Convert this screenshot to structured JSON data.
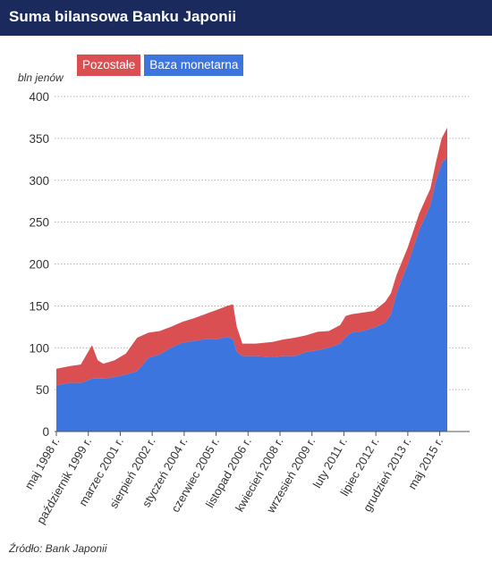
{
  "header": {
    "title": "Suma bilansowa Banku Japonii"
  },
  "legend": {
    "items": [
      {
        "label": "Pozostałe",
        "color": "#d94f52"
      },
      {
        "label": "Baza monetarna",
        "color": "#3c75dd"
      }
    ]
  },
  "source": "Źródło: Bank Japonii",
  "chart_data": {
    "type": "area",
    "stacked": true,
    "ylabel": "bln jenów",
    "ylim": [
      0,
      400
    ],
    "yticks": [
      0,
      50,
      100,
      150,
      200,
      250,
      300,
      350,
      400
    ],
    "grid": true,
    "legend_position": "top-left",
    "xlim": [
      "1998-05",
      "2015-09"
    ],
    "xticks": [
      {
        "date": "1998-05",
        "label": "maj 1998 r."
      },
      {
        "date": "1999-10",
        "label": "październik 1999 r."
      },
      {
        "date": "2001-03",
        "label": "marzec 2001 r."
      },
      {
        "date": "2002-08",
        "label": "sierpień 2002 r."
      },
      {
        "date": "2004-01",
        "label": "styczeń 2004 r."
      },
      {
        "date": "2005-06",
        "label": "czerwiec 2005 r."
      },
      {
        "date": "2006-11",
        "label": "listopad 2006 r."
      },
      {
        "date": "2008-04",
        "label": "kwiecień 2008 r."
      },
      {
        "date": "2009-09",
        "label": "wrzesień 2009 r."
      },
      {
        "date": "2011-02",
        "label": "luty 2011 r."
      },
      {
        "date": "2012-07",
        "label": "lipiec 2012 r."
      },
      {
        "date": "2013-12",
        "label": "grudzień 2013 r."
      },
      {
        "date": "2015-05",
        "label": "maj 2015 r."
      }
    ],
    "series": [
      {
        "name": "Baza monetarna",
        "color": "#3c75dd",
        "points": [
          [
            "1998-05",
            55
          ],
          [
            "1998-12",
            58
          ],
          [
            "1999-06",
            58
          ],
          [
            "1999-12",
            63
          ],
          [
            "2000-03",
            63
          ],
          [
            "2000-06",
            63
          ],
          [
            "2000-12",
            65
          ],
          [
            "2001-06",
            68
          ],
          [
            "2001-12",
            72
          ],
          [
            "2002-06",
            88
          ],
          [
            "2002-12",
            92
          ],
          [
            "2003-06",
            100
          ],
          [
            "2003-12",
            106
          ],
          [
            "2004-06",
            108
          ],
          [
            "2004-12",
            110
          ],
          [
            "2005-06",
            110
          ],
          [
            "2005-12",
            113
          ],
          [
            "2006-03",
            110
          ],
          [
            "2006-05",
            95
          ],
          [
            "2006-08",
            90
          ],
          [
            "2007-03",
            90
          ],
          [
            "2007-12",
            89
          ],
          [
            "2008-06",
            90
          ],
          [
            "2008-12",
            90
          ],
          [
            "2009-06",
            95
          ],
          [
            "2009-12",
            97
          ],
          [
            "2010-06",
            100
          ],
          [
            "2010-12",
            105
          ],
          [
            "2011-03",
            113
          ],
          [
            "2011-06",
            118
          ],
          [
            "2011-12",
            120
          ],
          [
            "2012-06",
            124
          ],
          [
            "2012-12",
            130
          ],
          [
            "2013-03",
            140
          ],
          [
            "2013-06",
            165
          ],
          [
            "2013-12",
            200
          ],
          [
            "2014-06",
            240
          ],
          [
            "2014-12",
            270
          ],
          [
            "2015-03",
            300
          ],
          [
            "2015-06",
            320
          ],
          [
            "2015-09",
            328
          ]
        ]
      },
      {
        "name": "Pozostałe",
        "color": "#d94f52",
        "points": [
          [
            "1998-05",
            20
          ],
          [
            "1998-12",
            20
          ],
          [
            "1999-06",
            22
          ],
          [
            "1999-12",
            40
          ],
          [
            "2000-03",
            22
          ],
          [
            "2000-06",
            18
          ],
          [
            "2000-12",
            20
          ],
          [
            "2001-06",
            25
          ],
          [
            "2001-12",
            40
          ],
          [
            "2002-06",
            30
          ],
          [
            "2002-12",
            28
          ],
          [
            "2003-06",
            25
          ],
          [
            "2003-12",
            25
          ],
          [
            "2004-06",
            27
          ],
          [
            "2004-12",
            30
          ],
          [
            "2005-06",
            35
          ],
          [
            "2005-12",
            37
          ],
          [
            "2006-03",
            42
          ],
          [
            "2006-05",
            30
          ],
          [
            "2006-08",
            15
          ],
          [
            "2007-03",
            15
          ],
          [
            "2007-12",
            18
          ],
          [
            "2008-06",
            20
          ],
          [
            "2008-12",
            22
          ],
          [
            "2009-06",
            20
          ],
          [
            "2009-12",
            22
          ],
          [
            "2010-06",
            20
          ],
          [
            "2010-12",
            22
          ],
          [
            "2011-03",
            25
          ],
          [
            "2011-06",
            22
          ],
          [
            "2011-12",
            22
          ],
          [
            "2012-06",
            20
          ],
          [
            "2012-12",
            25
          ],
          [
            "2013-03",
            25
          ],
          [
            "2013-06",
            22
          ],
          [
            "2013-12",
            20
          ],
          [
            "2014-06",
            20
          ],
          [
            "2014-12",
            20
          ],
          [
            "2015-03",
            22
          ],
          [
            "2015-06",
            30
          ],
          [
            "2015-09",
            35
          ]
        ]
      }
    ]
  }
}
